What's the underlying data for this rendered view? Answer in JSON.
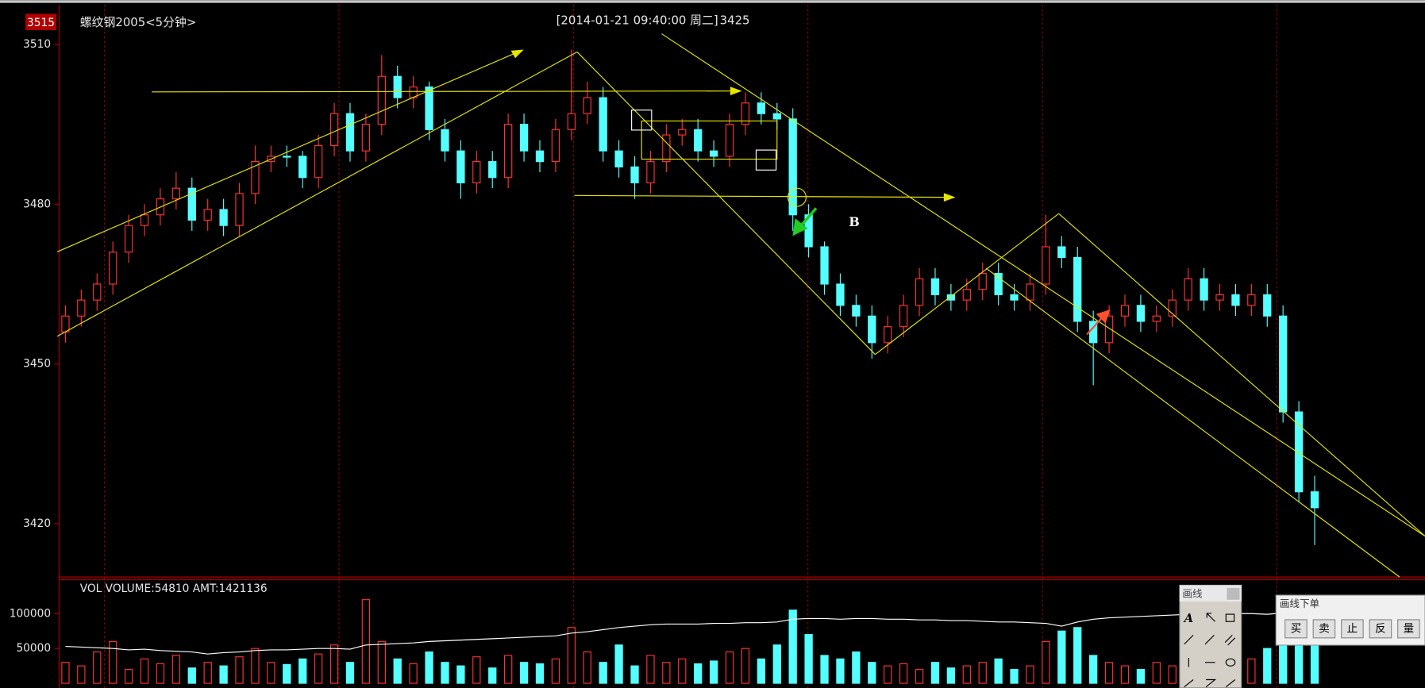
{
  "chart_data": {
    "type": "candlestick",
    "title": "螺纹钢2005<5分钟>",
    "cursor_time": "[2014-01-21  09:40:00 周二]",
    "cursor_price": 3425,
    "last_price_label": 3515,
    "ylim": [
      3410,
      3516.6
    ],
    "yticks": [
      3420,
      3450,
      3480,
      3510
    ],
    "up_color": "#ff3232",
    "down_color": "#54ffff",
    "open": [
      3456,
      3459,
      3462,
      3465,
      3471,
      3476,
      3478,
      3481,
      3483,
      3477,
      3479,
      3476,
      3482,
      3488,
      3489,
      3489,
      3485,
      3491,
      3497,
      3490,
      3495,
      3504,
      3500,
      3502,
      3494,
      3490,
      3484,
      3488,
      3485,
      3495,
      3490,
      3488,
      3494,
      3497,
      3500,
      3490,
      3487,
      3484,
      3488,
      3493,
      3494,
      3490,
      3489,
      3495,
      3499,
      3497,
      3496,
      3478,
      3472,
      3465,
      3461,
      3459,
      3454,
      3457,
      3461,
      3466,
      3463,
      3462,
      3464,
      3467,
      3463,
      3462,
      3465,
      3472,
      3470,
      3458,
      3454,
      3459,
      3461,
      3458,
      3459,
      3462,
      3466,
      3462,
      3463,
      3461,
      3463,
      3459,
      3441,
      3426
    ],
    "high": [
      3461,
      3464,
      3467,
      3473,
      3478,
      3480,
      3483,
      3486,
      3485,
      3481,
      3481,
      3484,
      3491,
      3491,
      3491,
      3490,
      3493,
      3499,
      3499,
      3497,
      3508,
      3506,
      3504,
      3503,
      3496,
      3492,
      3490,
      3490,
      3497,
      3497,
      3492,
      3496,
      3509,
      3503,
      3502,
      3492,
      3489,
      3490,
      3495,
      3496,
      3496,
      3492,
      3497,
      3501,
      3501,
      3499,
      3498,
      3480,
      3473,
      3467,
      3463,
      3461,
      3459,
      3463,
      3468,
      3468,
      3465,
      3466,
      3469,
      3469,
      3465,
      3467,
      3478,
      3474,
      3472,
      3460,
      3461,
      3463,
      3463,
      3461,
      3464,
      3468,
      3468,
      3465,
      3465,
      3465,
      3465,
      3461,
      3443,
      3429
    ],
    "low": [
      3454,
      3457,
      3460,
      3463,
      3469,
      3474,
      3476,
      3479,
      3475,
      3475,
      3474,
      3474,
      3480,
      3486,
      3487,
      3483,
      3483,
      3489,
      3488,
      3488,
      3493,
      3498,
      3498,
      3492,
      3488,
      3481,
      3482,
      3483,
      3483,
      3488,
      3486,
      3486,
      3492,
      3495,
      3488,
      3485,
      3481,
      3482,
      3486,
      3491,
      3488,
      3487,
      3487,
      3493,
      3495,
      3494,
      3475,
      3470,
      3463,
      3459,
      3457,
      3451,
      3452,
      3455,
      3459,
      3461,
      3460,
      3460,
      3462,
      3461,
      3460,
      3460,
      3463,
      3468,
      3456,
      3446,
      3452,
      3457,
      3456,
      3456,
      3457,
      3460,
      3460,
      3460,
      3459,
      3459,
      3457,
      3439,
      3424,
      3416
    ],
    "close": [
      3459,
      3462,
      3465,
      3471,
      3476,
      3478,
      3481,
      3483,
      3477,
      3479,
      3476,
      3482,
      3488,
      3489,
      3489,
      3485,
      3491,
      3497,
      3490,
      3495,
      3504,
      3500,
      3502,
      3494,
      3490,
      3484,
      3488,
      3485,
      3495,
      3490,
      3488,
      3494,
      3497,
      3500,
      3490,
      3487,
      3484,
      3488,
      3493,
      3494,
      3490,
      3489,
      3495,
      3499,
      3497,
      3496,
      3478,
      3472,
      3465,
      3461,
      3459,
      3454,
      3457,
      3461,
      3466,
      3463,
      3462,
      3464,
      3467,
      3463,
      3462,
      3465,
      3472,
      3470,
      3458,
      3454,
      3459,
      3461,
      3458,
      3459,
      3462,
      3466,
      3462,
      3463,
      3461,
      3463,
      3459,
      3441,
      3426,
      3423
    ],
    "volume_panel": {
      "label": "VOL  VOLUME:54810 AMT:1421136",
      "ylim": [
        0,
        146000
      ],
      "yticks": [
        50000,
        100000
      ],
      "values": [
        30000,
        25000,
        45000,
        60000,
        20000,
        35000,
        28000,
        40000,
        22000,
        30000,
        25000,
        38000,
        50000,
        30000,
        27000,
        35000,
        42000,
        55000,
        30000,
        120000,
        60000,
        35000,
        28000,
        45000,
        30000,
        25000,
        38000,
        22000,
        40000,
        30000,
        28000,
        35000,
        80000,
        45000,
        30000,
        55000,
        25000,
        40000,
        30000,
        35000,
        28000,
        32000,
        45000,
        50000,
        35000,
        55000,
        105000,
        70000,
        40000,
        35000,
        45000,
        30000,
        25000,
        28000,
        20000,
        30000,
        22000,
        25000,
        30000,
        35000,
        20000,
        25000,
        60000,
        75000,
        80000,
        40000,
        30000,
        25000,
        20000,
        30000,
        25000,
        45000,
        30000,
        20000,
        25000,
        35000,
        50000,
        90000,
        80000,
        60000
      ],
      "ma": {
        "color": "#ffffff",
        "values": [
          53000,
          52000,
          51000,
          50000,
          48000,
          49000,
          47000,
          46000,
          45000,
          42000,
          44000,
          45000,
          47000,
          48000,
          48000,
          49000,
          50000,
          50000,
          49000,
          55000,
          56000,
          57000,
          58000,
          60000,
          61000,
          62000,
          63000,
          64000,
          65000,
          66000,
          67000,
          68000,
          72000,
          74000,
          77000,
          80000,
          82000,
          84000,
          85000,
          85000,
          85000,
          86000,
          86000,
          87000,
          87000,
          88000,
          92000,
          93000,
          93000,
          92000,
          93000,
          93000,
          92000,
          92000,
          91000,
          91000,
          90000,
          90000,
          89000,
          88000,
          88000,
          87000,
          86000,
          82000,
          88000,
          92000,
          94000,
          95000,
          96000,
          97000,
          98000,
          99000,
          100000,
          101000,
          100000,
          100000,
          99000,
          101000,
          102000,
          102000
        ]
      }
    },
    "annotations": [
      "B"
    ]
  },
  "toolbar": {
    "draw_title": "画线",
    "text_tool": "A",
    "order_title": "画线下单",
    "buttons": [
      "买",
      "卖",
      "止",
      "反",
      "量"
    ]
  }
}
